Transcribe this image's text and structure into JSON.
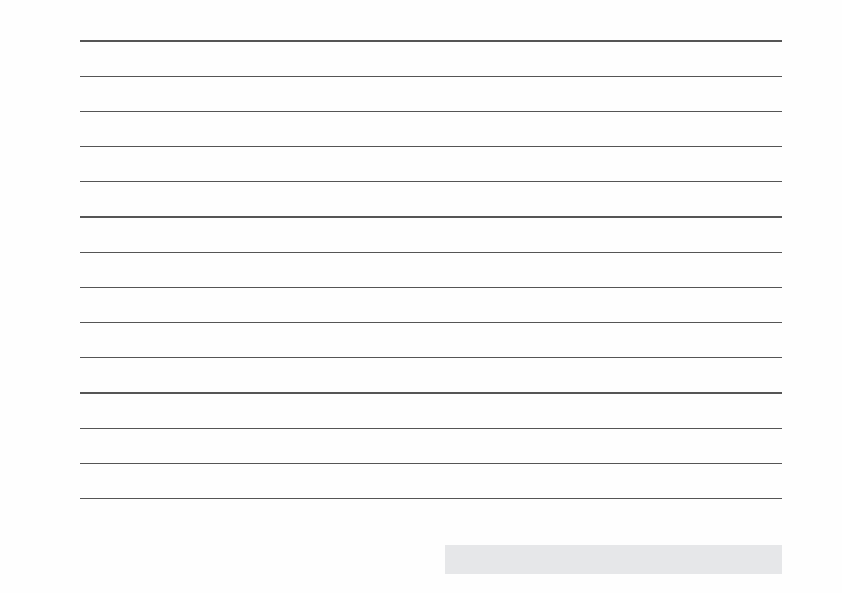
{
  "colors": {
    "rule": "#555555",
    "box": "#e6e7e9"
  },
  "texts": []
}
